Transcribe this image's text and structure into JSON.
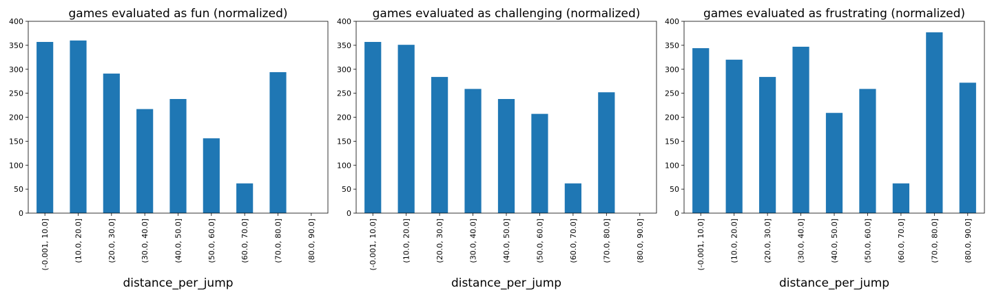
{
  "chart_data": [
    {
      "type": "bar",
      "title": "games evaluated as fun (normalized)",
      "xlabel": "distance_per_jump",
      "ylabel": "",
      "ylim": [
        0,
        400
      ],
      "yticks": [
        0,
        50,
        100,
        150,
        200,
        250,
        300,
        350,
        400
      ],
      "categories": [
        "(-0.001, 10.0]",
        "(10.0, 20.0]",
        "(20.0, 30.0]",
        "(30.0, 40.0]",
        "(40.0, 50.0]",
        "(50.0, 60.0]",
        "(60.0, 70.0]",
        "(70.0, 80.0]",
        "(80.0, 90.0]"
      ],
      "values": [
        357,
        360,
        291,
        217,
        238,
        156,
        62,
        294,
        0
      ],
      "grid": false,
      "bar_color": "#1f77b4"
    },
    {
      "type": "bar",
      "title": "games evaluated as challenging (normalized)",
      "xlabel": "distance_per_jump",
      "ylabel": "",
      "ylim": [
        0,
        400
      ],
      "yticks": [
        0,
        50,
        100,
        150,
        200,
        250,
        300,
        350,
        400
      ],
      "categories": [
        "(-0.001, 10.0]",
        "(10.0, 20.0]",
        "(20.0, 30.0]",
        "(30.0, 40.0]",
        "(40.0, 50.0]",
        "(50.0, 60.0]",
        "(60.0, 70.0]",
        "(70.0, 80.0]",
        "(80.0, 90.0]"
      ],
      "values": [
        357,
        351,
        284,
        259,
        238,
        207,
        62,
        252,
        0
      ],
      "grid": false,
      "bar_color": "#1f77b4"
    },
    {
      "type": "bar",
      "title": "games evaluated as frustrating (normalized)",
      "xlabel": "distance_per_jump",
      "ylabel": "",
      "ylim": [
        0,
        400
      ],
      "yticks": [
        0,
        50,
        100,
        150,
        200,
        250,
        300,
        350,
        400
      ],
      "categories": [
        "(-0.001, 10.0]",
        "(10.0, 20.0]",
        "(20.0, 30.0]",
        "(30.0, 40.0]",
        "(40.0, 50.0]",
        "(50.0, 60.0]",
        "(60.0, 70.0]",
        "(70.0, 80.0]",
        "(80.0, 90.0]"
      ],
      "values": [
        344,
        320,
        284,
        347,
        209,
        259,
        62,
        377,
        272
      ],
      "grid": false,
      "bar_color": "#1f77b4"
    }
  ]
}
